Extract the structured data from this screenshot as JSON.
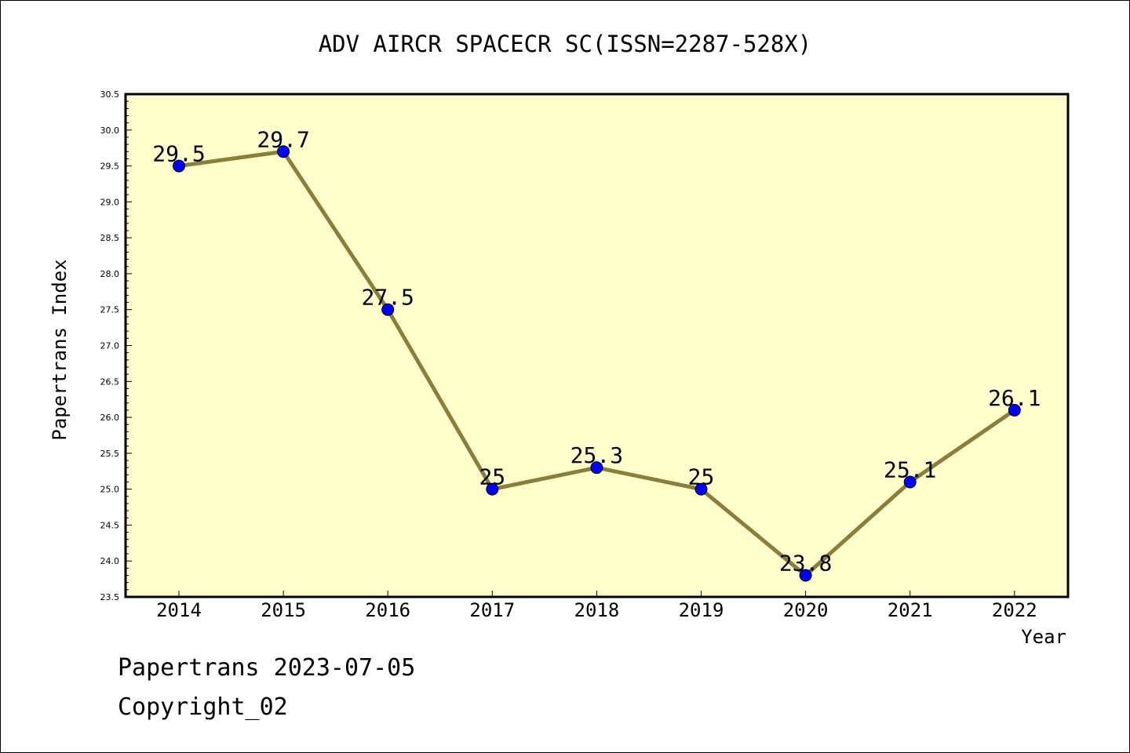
{
  "chart_data": {
    "type": "line",
    "title": "ADV AIRCR SPACECR SC(ISSN=2287-528X)",
    "xlabel": "Year",
    "ylabel": "Papertrans Index",
    "x": [
      "2014",
      "2015",
      "2016",
      "2017",
      "2018",
      "2019",
      "2020",
      "2021",
      "2022"
    ],
    "series": [
      {
        "values": [
          29.5,
          29.7,
          27.5,
          25.0,
          25.3,
          25.0,
          23.8,
          25.1,
          26.1
        ],
        "labels": [
          "29.5",
          "29.7",
          "27.5",
          "25",
          "25.3",
          "25",
          "23.8",
          "25.1",
          "26.1"
        ]
      }
    ],
    "ylim": [
      23.5,
      30.5
    ],
    "yticks": [
      "23.5",
      "24.0",
      "24.5",
      "25.0",
      "25.5",
      "26.0",
      "26.5",
      "27.0",
      "27.5",
      "28.0",
      "28.5",
      "29.0",
      "29.5",
      "30.0",
      "30.5"
    ],
    "grid": false,
    "colors": {
      "plot_background": "#ffffcc",
      "line": "#8b7d3a",
      "marker": "#0000ff"
    }
  },
  "footer": {
    "line1": "Papertrans 2023-07-05",
    "line2": "Copyright_02"
  }
}
